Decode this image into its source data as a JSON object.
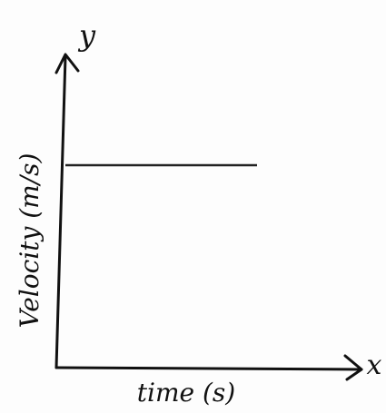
{
  "axes": {
    "y_label": "y",
    "x_label": "x",
    "y_title": "Velocity (m/s)",
    "x_title": "time (s)"
  }
}
